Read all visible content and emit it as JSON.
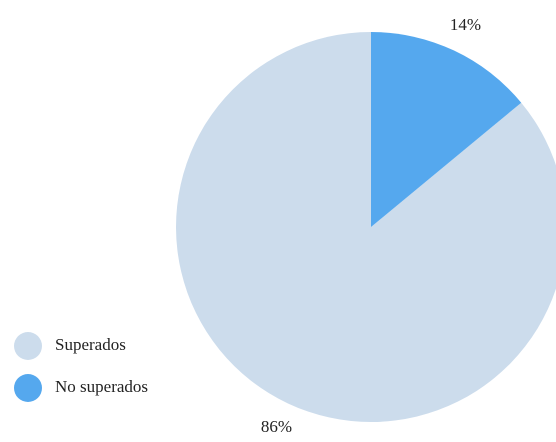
{
  "chart_data": {
    "type": "pie",
    "categories": [
      "Superados",
      "No superados"
    ],
    "values": [
      86,
      14
    ],
    "value_labels": [
      "86%",
      "14%"
    ],
    "colors": [
      "#ccdcec",
      "#55a8ee"
    ],
    "legend": "bottom-left"
  }
}
